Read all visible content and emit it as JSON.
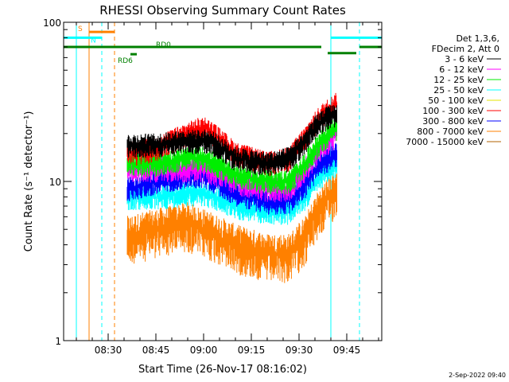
{
  "chart_data": {
    "type": "line",
    "title": "RHESSI Observing Summary Count Rates",
    "xlabel": "Start Time (26-Nov-17 08:16:02)",
    "ylabel": "Count Rate (s⁻¹ detector⁻¹)",
    "y_scale": "log",
    "ylim": [
      1,
      100
    ],
    "xlim": [
      "08:16",
      "09:56"
    ],
    "x_ticks": [
      "08:30",
      "08:45",
      "09:00",
      "09:15",
      "09:30",
      "09:45"
    ],
    "y_ticks": [
      "1",
      "10",
      "100"
    ],
    "footer": "2-Sep-2022 09:40",
    "legend": {
      "position": "right",
      "header": [
        "Det 1,3,6,",
        "FDecim 2, Att 0"
      ],
      "entries": [
        {
          "label": "3 - 6 keV",
          "color": "#000000"
        },
        {
          "label": "6 - 12 keV",
          "color": "#ff00ff"
        },
        {
          "label": "12 - 25 keV",
          "color": "#00ee00"
        },
        {
          "label": "25 - 50 keV",
          "color": "#00ffff"
        },
        {
          "label": "50 - 100 keV",
          "color": "#e5e500"
        },
        {
          "label": "100 - 300 keV",
          "color": "#ff0000"
        },
        {
          "label": "300 - 800 keV",
          "color": "#0000ff"
        },
        {
          "label": "800 - 7000 keV",
          "color": "#ff8000"
        },
        {
          "label": "7000 - 15000 keV",
          "color": "#b06000"
        }
      ]
    },
    "series": [
      {
        "name": "3 - 6 keV",
        "color": "#000000",
        "x": [
          "08:36",
          "08:45",
          "08:55",
          "09:02",
          "09:10",
          "09:20",
          "09:27",
          "09:32",
          "09:37",
          "09:42"
        ],
        "y": [
          17,
          17,
          18,
          18,
          14,
          13,
          14,
          18,
          24,
          27
        ]
      },
      {
        "name": "100 - 300 keV",
        "color": "#ff0000",
        "x": [
          "08:36",
          "08:45",
          "08:55",
          "09:00",
          "09:10",
          "09:20",
          "09:27",
          "09:32",
          "09:37",
          "09:42"
        ],
        "y": [
          15,
          16,
          20,
          22,
          15,
          13,
          14,
          19,
          26,
          31
        ]
      },
      {
        "name": "12 - 25 keV",
        "color": "#00ee00",
        "x": [
          "08:36",
          "08:45",
          "08:55",
          "09:00",
          "09:10",
          "09:20",
          "09:27",
          "09:32",
          "09:37",
          "09:42"
        ],
        "y": [
          13,
          13,
          14,
          14,
          11,
          10,
          10,
          13,
          18,
          22
        ]
      },
      {
        "name": "6 - 12 keV",
        "color": "#ff00ff",
        "x": [
          "08:36",
          "08:45",
          "08:55",
          "09:00",
          "09:10",
          "09:20",
          "09:27",
          "09:32",
          "09:37",
          "09:42"
        ],
        "y": [
          12,
          12,
          12,
          12,
          10,
          9,
          9,
          12,
          16,
          20
        ]
      },
      {
        "name": "300 - 800 keV",
        "color": "#0000ff",
        "x": [
          "08:36",
          "08:45",
          "08:55",
          "09:00",
          "09:10",
          "09:20",
          "09:27",
          "09:32",
          "09:37",
          "09:42"
        ],
        "y": [
          9,
          10,
          11,
          11,
          8.5,
          7.5,
          7.5,
          9.5,
          13,
          15
        ]
      },
      {
        "name": "25 - 50 keV",
        "color": "#00ffff",
        "x": [
          "08:36",
          "08:45",
          "08:55",
          "09:00",
          "09:10",
          "09:20",
          "09:27",
          "09:32",
          "09:37",
          "09:42"
        ],
        "y": [
          8,
          8,
          8.5,
          8.5,
          7,
          6.5,
          6.5,
          8,
          11,
          13
        ]
      },
      {
        "name": "800 - 7000 keV",
        "color": "#ff8000",
        "x": [
          "08:36",
          "08:45",
          "08:55",
          "09:00",
          "09:10",
          "09:20",
          "09:27",
          "09:32",
          "09:37",
          "09:42"
        ],
        "y": [
          4.5,
          5,
          5.5,
          5,
          4,
          3.5,
          3.5,
          4.5,
          7,
          9
        ]
      }
    ],
    "vlines": [
      {
        "x": "08:20",
        "color": "#00ffff",
        "style": "solid"
      },
      {
        "x": "08:24",
        "color": "#ff8000",
        "style": "solid"
      },
      {
        "x": "08:28",
        "color": "#00ffff",
        "style": "dashed"
      },
      {
        "x": "08:32",
        "color": "#ff8000",
        "style": "dashed"
      },
      {
        "x": "09:40",
        "color": "#00ffff",
        "style": "solid"
      },
      {
        "x": "09:49",
        "color": "#00ffff",
        "style": "dashed"
      }
    ],
    "state_bars": [
      {
        "label": "S",
        "color": "#ff8000",
        "x0": "08:24",
        "x1": "08:32",
        "y": 87
      },
      {
        "label": "N",
        "color": "#00ffff",
        "x0": "08:16",
        "x1": "08:28",
        "y": 80
      },
      {
        "label": "RD0",
        "color": "#008000",
        "x0": "08:16",
        "x1": "09:37",
        "y": 70
      },
      {
        "label": "RD6",
        "color": "#008000",
        "x0": "08:37",
        "x1": "08:39",
        "y": 63
      },
      {
        "label": "",
        "color": "#00ffff",
        "x0": "09:40",
        "x1": "09:56",
        "y": 80
      },
      {
        "label": "",
        "color": "#008000",
        "x0": "09:39",
        "x1": "09:48",
        "y": 64
      },
      {
        "label": "",
        "color": "#008000",
        "x0": "09:49",
        "x1": "09:56",
        "y": 70
      }
    ]
  }
}
